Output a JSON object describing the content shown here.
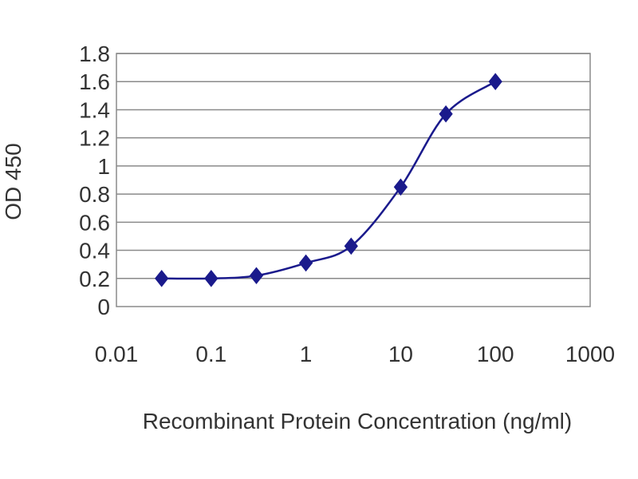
{
  "chart_data": {
    "type": "line",
    "title": "",
    "xlabel": "Recombinant Protein Concentration (ng/ml)",
    "ylabel": "OD 450",
    "x_scale": "log",
    "xlim": [
      0.01,
      1000
    ],
    "ylim": [
      0,
      1.8
    ],
    "x_ticks": [
      "0.01",
      "0.1",
      "1",
      "10",
      "100",
      "1000"
    ],
    "x_tick_values": [
      0.01,
      0.1,
      1,
      10,
      100,
      1000
    ],
    "y_ticks": [
      "0",
      "0.2",
      "0.4",
      "0.6",
      "0.8",
      "1",
      "1.2",
      "1.4",
      "1.6",
      "1.8"
    ],
    "y_tick_values": [
      0,
      0.2,
      0.4,
      0.6,
      0.8,
      1.0,
      1.2,
      1.4,
      1.6,
      1.8
    ],
    "grid": "horizontal",
    "legend": "none",
    "series": [
      {
        "marker": "diamond",
        "color": "#1a1a8c",
        "x": [
          0.03,
          0.1,
          0.3,
          1,
          3,
          10,
          30,
          100
        ],
        "y": [
          0.2,
          0.2,
          0.22,
          0.31,
          0.43,
          0.85,
          1.37,
          1.6
        ]
      }
    ]
  }
}
